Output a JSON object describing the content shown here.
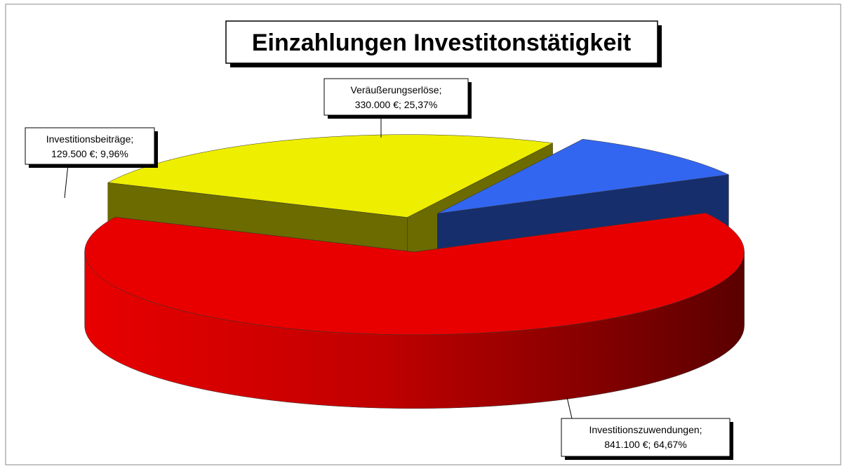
{
  "chart_data": {
    "type": "pie3d",
    "title": "Einzahlungen Investitonstätigkeit",
    "categories": [
      "Investitionszuwendungen;",
      "Veräußerungserlöse;",
      "Investitionsbeiträge;"
    ],
    "values": [
      841100,
      330000,
      129500
    ],
    "value_labels": [
      "841.100 €; 64,67%",
      "330.000 €; 25,37%",
      "129.500 €; 9,96%"
    ],
    "colors": [
      "#e80000",
      "#eeee00",
      "#3366f0"
    ]
  }
}
